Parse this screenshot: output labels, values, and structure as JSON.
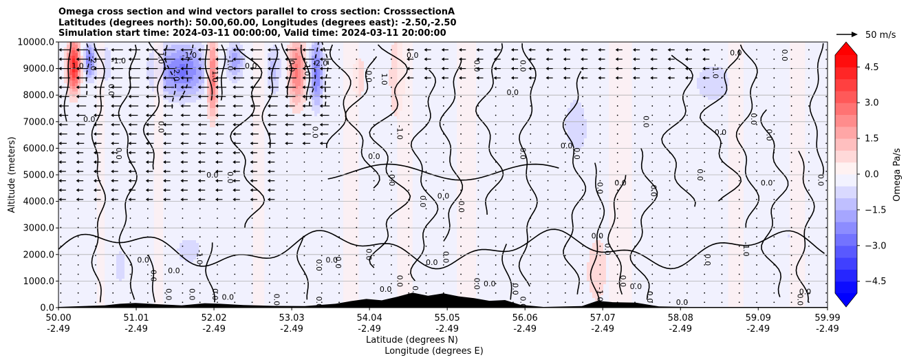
{
  "chart_data": {
    "type": "heatmap",
    "title_lines": [
      "Omega cross section and wind vectors parallel to cross section: CrosssectionA",
      "Latitudes (degrees north): 50.00,60.00, Longitudes (degrees east): -2.50,-2.50",
      "Simulation start time: 2024-03-11 00:00:00, Valid time: 2024-03-11 20:00:00"
    ],
    "xlabel_lines": [
      "Latitude (degrees N)",
      "Longitude (degrees E)"
    ],
    "ylabel": "Altitude (meters)",
    "x_range": [
      50.0,
      59.99
    ],
    "ylim": [
      0,
      10000
    ],
    "x_ticks": [
      {
        "value": 50.0,
        "lat": "50.00",
        "lon": "-2.49"
      },
      {
        "value": 51.01,
        "lat": "51.01",
        "lon": "-2.49"
      },
      {
        "value": 52.02,
        "lat": "52.02",
        "lon": "-2.49"
      },
      {
        "value": 53.03,
        "lat": "53.03",
        "lon": "-2.49"
      },
      {
        "value": 54.04,
        "lat": "54.04",
        "lon": "-2.49"
      },
      {
        "value": 55.05,
        "lat": "55.05",
        "lon": "-2.49"
      },
      {
        "value": 56.06,
        "lat": "56.06",
        "lon": "-2.49"
      },
      {
        "value": 57.07,
        "lat": "57.07",
        "lon": "-2.49"
      },
      {
        "value": 58.08,
        "lat": "58.08",
        "lon": "-2.49"
      },
      {
        "value": 59.09,
        "lat": "59.09",
        "lon": "-2.49"
      },
      {
        "value": 59.99,
        "lat": "59.99",
        "lon": "-2.49"
      }
    ],
    "y_ticks": [
      {
        "value": 0,
        "label": "0.0"
      },
      {
        "value": 1000,
        "label": "1000.0"
      },
      {
        "value": 2000,
        "label": "2000.0"
      },
      {
        "value": 3000,
        "label": "3000.0"
      },
      {
        "value": 4000,
        "label": "4000.0"
      },
      {
        "value": 5000,
        "label": "5000.0"
      },
      {
        "value": 6000,
        "label": "6000.0"
      },
      {
        "value": 7000,
        "label": "7000.0"
      },
      {
        "value": 8000,
        "label": "8000.0"
      },
      {
        "value": 9000,
        "label": "9000.0"
      },
      {
        "value": 10000,
        "label": "10000.0"
      }
    ],
    "grid_y": true,
    "colorbar": {
      "label": "Omega Pa/s",
      "range": [
        -5.0,
        5.0
      ],
      "step": 0.5,
      "extend": "both",
      "ticks": [
        {
          "value": 4.5,
          "label": "4.5"
        },
        {
          "value": 3.0,
          "label": "3.0"
        },
        {
          "value": 1.5,
          "label": "1.5"
        },
        {
          "value": 0.0,
          "label": "0.0"
        },
        {
          "value": -1.5,
          "label": "−1.5"
        },
        {
          "value": -3.0,
          "label": "−3.0"
        },
        {
          "value": -4.5,
          "label": "−4.5"
        }
      ]
    },
    "quiver_key": {
      "label": "50 m/s",
      "speed": 50
    },
    "omega_blobs": [
      {
        "x": 50.2,
        "z": 9100,
        "sx": 0.06,
        "sz": 700,
        "amp": 4.2
      },
      {
        "x": 50.4,
        "z": 9300,
        "sx": 0.05,
        "sz": 500,
        "amp": -2.5
      },
      {
        "x": 50.6,
        "z": 9200,
        "sx": 0.08,
        "sz": 600,
        "amp": -1.0
      },
      {
        "x": 51.6,
        "z": 8900,
        "sx": 0.25,
        "sz": 700,
        "amp": -2.6
      },
      {
        "x": 52.0,
        "z": 8700,
        "sx": 0.05,
        "sz": 1000,
        "amp": 3.4
      },
      {
        "x": 52.3,
        "z": 9300,
        "sx": 0.08,
        "sz": 500,
        "amp": -1.8
      },
      {
        "x": 52.8,
        "z": 9000,
        "sx": 0.07,
        "sz": 700,
        "amp": -1.2
      },
      {
        "x": 53.1,
        "z": 8900,
        "sx": 0.08,
        "sz": 900,
        "amp": 2.6
      },
      {
        "x": 53.35,
        "z": 8800,
        "sx": 0.06,
        "sz": 900,
        "amp": -2.6
      },
      {
        "x": 53.9,
        "z": 8700,
        "sx": 0.1,
        "sz": 900,
        "amp": 0.7
      },
      {
        "x": 54.4,
        "z": 8500,
        "sx": 0.08,
        "sz": 1300,
        "amp": 1.0
      },
      {
        "x": 56.8,
        "z": 7500,
        "sx": 0.3,
        "sz": 2000,
        "amp": -0.6
      },
      {
        "x": 57.4,
        "z": 8300,
        "sx": 0.4,
        "sz": 1500,
        "amp": 0.5
      },
      {
        "x": 58.5,
        "z": 8500,
        "sx": 0.2,
        "sz": 600,
        "amp": -0.9
      },
      {
        "x": 59.3,
        "z": 6500,
        "sx": 0.25,
        "sz": 2500,
        "amp": 0.4
      },
      {
        "x": 50.8,
        "z": 1500,
        "sx": 0.1,
        "sz": 800,
        "amp": -0.7
      },
      {
        "x": 51.7,
        "z": 2200,
        "sx": 0.2,
        "sz": 600,
        "amp": -0.6
      },
      {
        "x": 55.3,
        "z": 2000,
        "sx": 0.15,
        "sz": 1200,
        "amp": -0.6
      },
      {
        "x": 57.0,
        "z": 1500,
        "sx": 0.1,
        "sz": 1000,
        "amp": 0.6
      },
      {
        "x": 59.5,
        "z": 2800,
        "sx": 0.1,
        "sz": 600,
        "amp": -0.6
      }
    ],
    "contour_labels": [
      {
        "x": 50.25,
        "z": 9000,
        "text": "1.0"
      },
      {
        "x": 50.42,
        "z": 9200,
        "text": "-2.0"
      },
      {
        "x": 50.65,
        "z": 8200,
        "text": "0.0"
      },
      {
        "x": 50.78,
        "z": 9200,
        "text": "-1.0"
      },
      {
        "x": 51.3,
        "z": 9400,
        "text": "1.0"
      },
      {
        "x": 51.5,
        "z": 8800,
        "text": "-2.0"
      },
      {
        "x": 51.7,
        "z": 9400,
        "text": "-1.0"
      },
      {
        "x": 52.0,
        "z": 8700,
        "text": "1.0"
      },
      {
        "x": 52.2,
        "z": 9200,
        "text": "-1.0"
      },
      {
        "x": 52.5,
        "z": 9000,
        "text": "0.0"
      },
      {
        "x": 53.0,
        "z": 9100,
        "text": "0.0"
      },
      {
        "x": 53.2,
        "z": 9000,
        "text": "-1.0"
      },
      {
        "x": 53.4,
        "z": 9100,
        "text": "-2.0"
      },
      {
        "x": 54.0,
        "z": 8700,
        "text": "0.0"
      },
      {
        "x": 54.2,
        "z": 8600,
        "text": "1.0"
      },
      {
        "x": 54.6,
        "z": 9400,
        "text": "0.0"
      },
      {
        "x": 55.4,
        "z": 9100,
        "text": "0.0"
      },
      {
        "x": 56.0,
        "z": 9100,
        "text": "0.0"
      },
      {
        "x": 55.9,
        "z": 8000,
        "text": "0.0"
      },
      {
        "x": 57.6,
        "z": 7000,
        "text": "0.0"
      },
      {
        "x": 58.5,
        "z": 8900,
        "text": "-1.0"
      },
      {
        "x": 58.8,
        "z": 9500,
        "text": "0.0"
      },
      {
        "x": 59.4,
        "z": 9500,
        "text": "0.0"
      },
      {
        "x": 54.4,
        "z": 6600,
        "text": "-1.0"
      },
      {
        "x": 50.4,
        "z": 7000,
        "text": "0.0"
      },
      {
        "x": 50.75,
        "z": 5800,
        "text": "0.0"
      },
      {
        "x": 51.3,
        "z": 6800,
        "text": "0.0"
      },
      {
        "x": 52.0,
        "z": 4900,
        "text": "0.0"
      },
      {
        "x": 52.2,
        "z": 4900,
        "text": "0.0"
      },
      {
        "x": 53.3,
        "z": 6600,
        "text": "0.0"
      },
      {
        "x": 54.1,
        "z": 5600,
        "text": "0.0"
      },
      {
        "x": 54.3,
        "z": 4800,
        "text": "0.0"
      },
      {
        "x": 54.7,
        "z": 4000,
        "text": "0.0"
      },
      {
        "x": 55.0,
        "z": 4100,
        "text": "0.0"
      },
      {
        "x": 55.2,
        "z": 3800,
        "text": "0.0"
      },
      {
        "x": 56.0,
        "z": 5800,
        "text": "0.0"
      },
      {
        "x": 56.6,
        "z": 6000,
        "text": "0.0"
      },
      {
        "x": 56.7,
        "z": 5800,
        "text": "0.0"
      },
      {
        "x": 57.0,
        "z": 4500,
        "text": "0.0"
      },
      {
        "x": 57.3,
        "z": 4600,
        "text": "0.0"
      },
      {
        "x": 57.7,
        "z": 4400,
        "text": "0.0"
      },
      {
        "x": 58.3,
        "z": 5000,
        "text": "0.0"
      },
      {
        "x": 58.6,
        "z": 6500,
        "text": "0.0"
      },
      {
        "x": 59.0,
        "z": 7100,
        "text": "0.0"
      },
      {
        "x": 59.2,
        "z": 6500,
        "text": "0.0"
      },
      {
        "x": 59.2,
        "z": 4600,
        "text": "0.0"
      },
      {
        "x": 59.87,
        "z": 4800,
        "text": "0.0"
      },
      {
        "x": 51.8,
        "z": 1900,
        "text": "-1.0"
      },
      {
        "x": 51.1,
        "z": 1700,
        "text": "0.0"
      },
      {
        "x": 51.2,
        "z": 1200,
        "text": "0.0"
      },
      {
        "x": 51.4,
        "z": 500,
        "text": "0.0"
      },
      {
        "x": 51.5,
        "z": 1300,
        "text": "0.0"
      },
      {
        "x": 51.7,
        "z": 500,
        "text": "0.0"
      },
      {
        "x": 52.0,
        "z": 500,
        "text": "0.0"
      },
      {
        "x": 52.2,
        "z": 300,
        "text": "0.0"
      },
      {
        "x": 52.8,
        "z": 300,
        "text": "0.0"
      },
      {
        "x": 53.35,
        "z": 1600,
        "text": "0.0"
      },
      {
        "x": 53.55,
        "z": 1700,
        "text": "0.0"
      },
      {
        "x": 53.35,
        "z": 200,
        "text": "0.0"
      },
      {
        "x": 54.0,
        "z": 2000,
        "text": "0.0"
      },
      {
        "x": 54.25,
        "z": 600,
        "text": "0.0"
      },
      {
        "x": 54.4,
        "z": 1000,
        "text": "0.0"
      },
      {
        "x": 54.6,
        "z": 600,
        "text": "0.0"
      },
      {
        "x": 54.85,
        "z": 1600,
        "text": "0.0"
      },
      {
        "x": 55.0,
        "z": 1900,
        "text": "0.0"
      },
      {
        "x": 55.4,
        "z": 900,
        "text": "0.0"
      },
      {
        "x": 55.6,
        "z": 800,
        "text": "0.0"
      },
      {
        "x": 55.9,
        "z": 700,
        "text": "0.0"
      },
      {
        "x": 56.0,
        "z": 200,
        "text": "0.0"
      },
      {
        "x": 57.0,
        "z": 2600,
        "text": "0.0"
      },
      {
        "x": 57.1,
        "z": 2200,
        "text": "0.0"
      },
      {
        "x": 57.3,
        "z": 1000,
        "text": "0.0"
      },
      {
        "x": 57.5,
        "z": 700,
        "text": "0.0"
      },
      {
        "x": 57.65,
        "z": 400,
        "text": "0.0"
      },
      {
        "x": 57.0,
        "z": 500,
        "text": "-1.0"
      },
      {
        "x": 58.1,
        "z": 100,
        "text": "0.0"
      },
      {
        "x": 58.4,
        "z": 1800,
        "text": "0.0"
      },
      {
        "x": 58.9,
        "z": 2200,
        "text": "-1.0"
      },
      {
        "x": 59.7,
        "z": 500,
        "text": "0.0"
      },
      {
        "x": 59.6,
        "z": 300,
        "text": "0.0"
      },
      {
        "x": 53.6,
        "z": 1700,
        "text": "0.0"
      }
    ],
    "terrain_profile": [
      {
        "x": 50.0,
        "z": 0
      },
      {
        "x": 50.6,
        "z": 60
      },
      {
        "x": 50.8,
        "z": 120
      },
      {
        "x": 51.0,
        "z": 150
      },
      {
        "x": 51.3,
        "z": 100
      },
      {
        "x": 51.6,
        "z": 60
      },
      {
        "x": 51.9,
        "z": 140
      },
      {
        "x": 52.1,
        "z": 120
      },
      {
        "x": 52.4,
        "z": 70
      },
      {
        "x": 52.8,
        "z": 40
      },
      {
        "x": 53.2,
        "z": 30
      },
      {
        "x": 53.6,
        "z": 120
      },
      {
        "x": 53.8,
        "z": 220
      },
      {
        "x": 54.0,
        "z": 300
      },
      {
        "x": 54.2,
        "z": 250
      },
      {
        "x": 54.4,
        "z": 380
      },
      {
        "x": 54.6,
        "z": 540
      },
      {
        "x": 54.8,
        "z": 420
      },
      {
        "x": 55.0,
        "z": 510
      },
      {
        "x": 55.2,
        "z": 400
      },
      {
        "x": 55.4,
        "z": 330
      },
      {
        "x": 55.6,
        "z": 230
      },
      {
        "x": 55.8,
        "z": 260
      },
      {
        "x": 56.0,
        "z": 80
      },
      {
        "x": 56.3,
        "z": 0
      },
      {
        "x": 56.8,
        "z": 30
      },
      {
        "x": 57.0,
        "z": 230
      },
      {
        "x": 57.2,
        "z": 180
      },
      {
        "x": 57.5,
        "z": 160
      },
      {
        "x": 57.8,
        "z": 20
      },
      {
        "x": 58.2,
        "z": 0
      },
      {
        "x": 59.99,
        "z": 0
      }
    ]
  }
}
